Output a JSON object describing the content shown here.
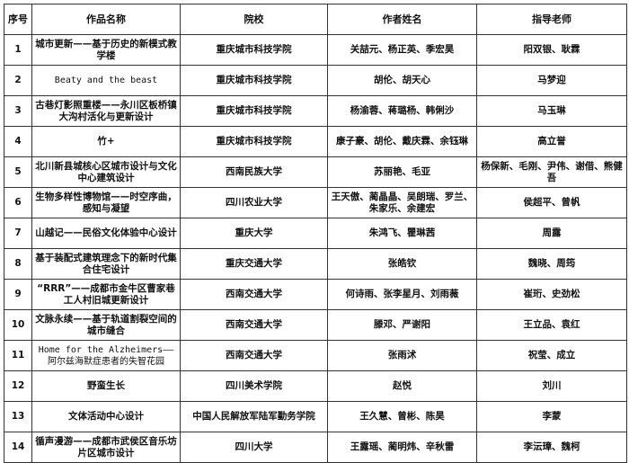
{
  "headers": [
    "序号",
    "作品名称",
    "院校",
    "作者姓名",
    "指导老师"
  ],
  "rows": [
    {
      "no": "1",
      "title": "城市更新——基于历史的新模式教学楼",
      "school": "重庆城市科技学院",
      "authors": "关喆元、杨正英、季宏昊",
      "advisors": "阳双银、耿霖"
    },
    {
      "no": "2",
      "title": "Beaty and the beast",
      "school": "重庆城市科技学院",
      "authors": "胡伦、胡天心",
      "advisors": "马梦迎"
    },
    {
      "no": "3",
      "title": "古巷灯影照重楼——永川区板桥镇大沟村活化与更新设计",
      "school": "重庆城市科技学院",
      "authors": "杨渝蓉、蒋璐杨、韩俐沙",
      "advisors": "马玉琳"
    },
    {
      "no": "4",
      "title": "竹+",
      "school": "重庆城市科技学院",
      "authors": "康子豪、胡伦、戴庆霖、余钰琳",
      "advisors": "高立誉"
    },
    {
      "no": "5",
      "title": "北川新县城核心区城市设计与文化中心建筑设计",
      "school": "西南民族大学",
      "authors": "苏丽艳、毛亚",
      "advisors": "杨保新、毛刚、尹伟、谢借、熊健吾"
    },
    {
      "no": "6",
      "title": "生物多样性博物馆——时空序曲，感知与凝望",
      "school": "四川农业大学",
      "authors": "王天傲、蔺晶晶、吴朗瑞、罗兰、朱家乐、余建宏",
      "advisors": "侯超平、曾帆"
    },
    {
      "no": "7",
      "title": "山越记——民俗文化体验中心设计",
      "school": "重庆大学",
      "authors": "朱鸿飞、瞿琳茜",
      "advisors": "周露"
    },
    {
      "no": "8",
      "title": "基于装配式建筑理念下的新时代集合住宅设计",
      "school": "重庆交通大学",
      "authors": "张皓钦",
      "advisors": "魏晓、周筠"
    },
    {
      "no": "9",
      "title": "“RRR”——成都市金牛区曹家巷工人村旧城更新设计",
      "school": "西南交通大学",
      "authors": "何诗雨、张李星月、刘雨薇",
      "advisors": "崔珩、史劲松"
    },
    {
      "no": "10",
      "title": "文脉永续——基于轨道割裂空间的城市缝合",
      "school": "西南交通大学",
      "authors": "滕邓、严谢阳",
      "advisors": "王立品、袁红"
    },
    {
      "no": "11",
      "title": "Home for the Alzheimers——阿尔兹海默症患者的失智花园",
      "school": "西南交通大学",
      "authors": "张雨沭",
      "advisors": "祝莹、成立"
    },
    {
      "no": "12",
      "title": "野蛮生长",
      "school": "四川美术学院",
      "authors": "赵悦",
      "advisors": "刘川"
    },
    {
      "no": "13",
      "title": "文体活动中心设计",
      "school": "中国人民解放军陆军勤务学院",
      "authors": "王久慧、曾彬、陈昊",
      "advisors": "李蒙"
    },
    {
      "no": "14",
      "title": "循声漫游——成都市武侯区音乐坊片区城市设计",
      "school": "四川大学",
      "authors": "王露瑶、蔺明炜、辛秋雷",
      "advisors": "李沄璋、魏柯"
    }
  ]
}
